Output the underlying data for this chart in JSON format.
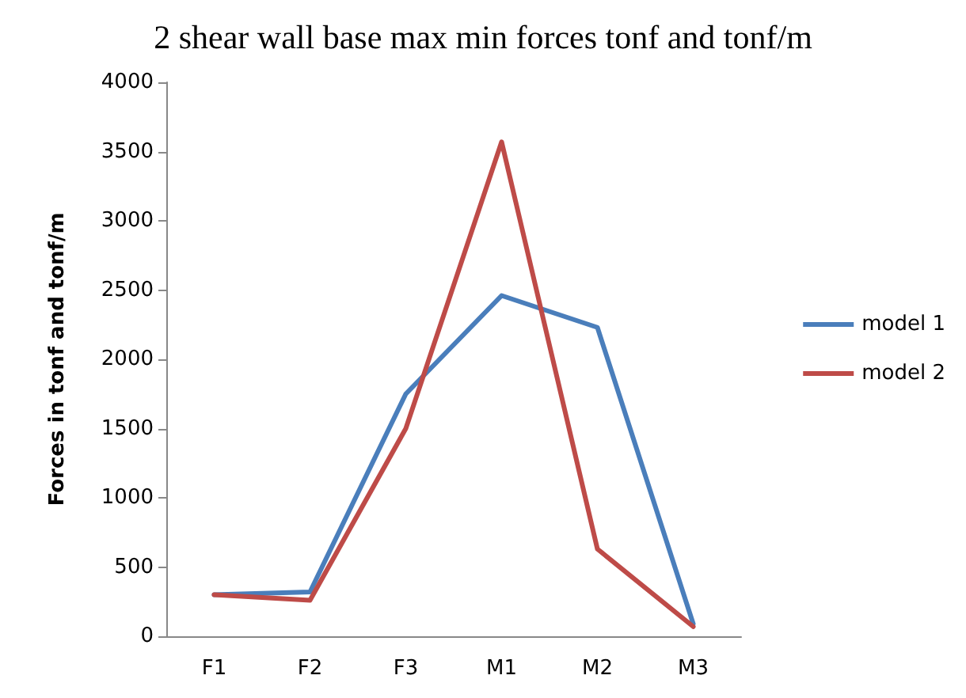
{
  "chart_data": {
    "type": "line",
    "title": "2 shear wall base max min forces tonf and tonf/m",
    "ylabel": "Forces in tonf and tonf/m",
    "categories": [
      "F1",
      "F2",
      "F3",
      "M1",
      "M2",
      "M3"
    ],
    "series": [
      {
        "name": "model 1",
        "color": "#4a7ebb",
        "values": [
          300,
          320,
          1750,
          2460,
          2230,
          90
        ]
      },
      {
        "name": "model 2",
        "color": "#be4b48",
        "values": [
          300,
          260,
          1500,
          3570,
          630,
          70
        ]
      }
    ],
    "ylim": [
      0,
      4000
    ],
    "yticks": [
      0,
      500,
      1000,
      1500,
      2000,
      2500,
      3000,
      3500,
      4000
    ],
    "grid": false,
    "legend": "right",
    "marker": "none",
    "line_style": "solid"
  }
}
